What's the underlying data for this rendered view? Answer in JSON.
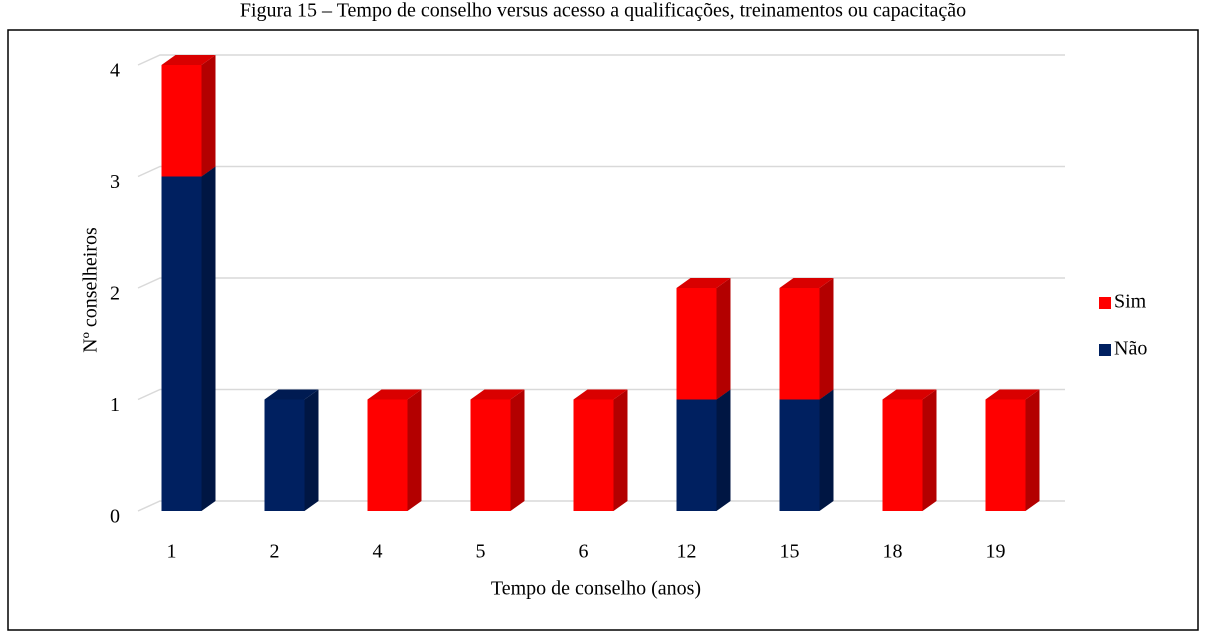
{
  "chart_data": {
    "type": "bar3d_stacked",
    "title": "Figura 15 – Tempo de conselho versus acesso a qualificações, treinamentos ou capacitação",
    "x_label": "Tempo de conselho (anos)",
    "y_label": "Nº conselheiros",
    "categories": [
      "1",
      "2",
      "4",
      "5",
      "6",
      "12",
      "15",
      "18",
      "19"
    ],
    "series": [
      {
        "name": "Não",
        "color": "#002060",
        "values": [
          3,
          1,
          0,
          0,
          0,
          1,
          1,
          0,
          0
        ]
      },
      {
        "name": "Sim",
        "color": "#ff0000",
        "values": [
          1,
          0,
          1,
          1,
          1,
          1,
          1,
          1,
          1
        ]
      }
    ],
    "ylim": [
      0,
      4
    ],
    "yticks": [
      0,
      1,
      2,
      3,
      4
    ],
    "grid": true,
    "legend": "right"
  }
}
